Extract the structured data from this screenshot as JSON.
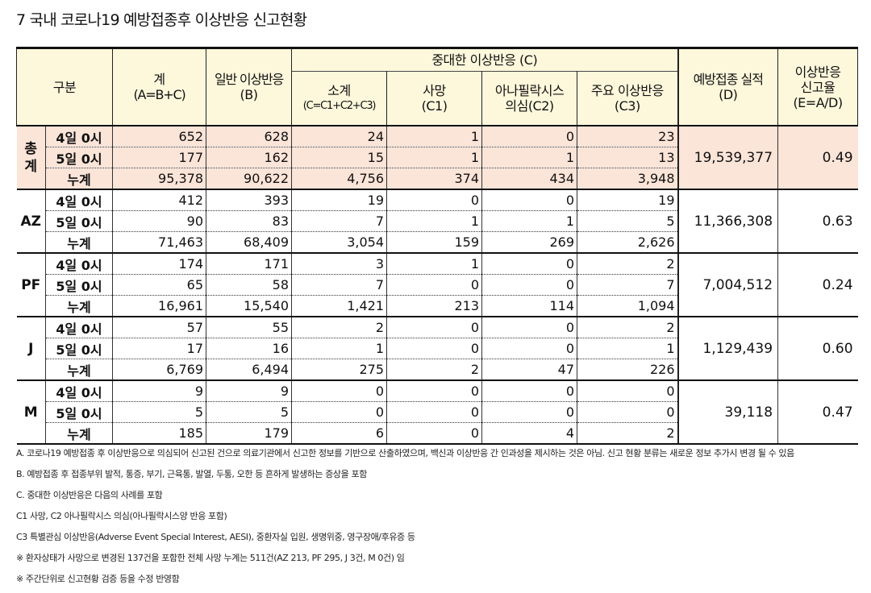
{
  "title": "7  국내 코로나19 예방접종후 이상반응 신고현황",
  "headers": {
    "category": "구분",
    "total": "계",
    "total_formula": "(A=B+C)",
    "general": "일반 이상반응",
    "general_code": "(B)",
    "serious": "중대한 이상반응 (C)",
    "subtotal": "소계",
    "subtotal_formula": "(C=C1+C2+C3)",
    "death": "사망",
    "death_code": "(C1)",
    "anaphylaxis": "아나필락시스",
    "anaphylaxis_sub": "의심(C2)",
    "major": "주요  이상반응",
    "major_code": "(C3)",
    "vaccination": "예방접종 실적",
    "vaccination_code": "(D)",
    "rate": "이상반응",
    "rate_sub": "신고율",
    "rate_code": "(E=A/D)"
  },
  "row_labels": [
    "4일 0시",
    "5일 0시",
    "누계"
  ],
  "groups": [
    {
      "name": "총계",
      "name_lines": [
        "총",
        "계"
      ],
      "vaccinations": "19,539,377",
      "rate": "0.49",
      "rows": [
        [
          "652",
          "628",
          "24",
          "1",
          "0",
          "23"
        ],
        [
          "177",
          "162",
          "15",
          "1",
          "1",
          "13"
        ],
        [
          "95,378",
          "90,622",
          "4,756",
          "374",
          "434",
          "3,948"
        ]
      ]
    },
    {
      "name": "AZ",
      "name_lines": [
        "AZ",
        ""
      ],
      "vaccinations": "11,366,308",
      "rate": "0.63",
      "rows": [
        [
          "412",
          "393",
          "19",
          "0",
          "0",
          "19"
        ],
        [
          "90",
          "83",
          "7",
          "1",
          "1",
          "5"
        ],
        [
          "71,463",
          "68,409",
          "3,054",
          "159",
          "269",
          "2,626"
        ]
      ]
    },
    {
      "name": "PF",
      "name_lines": [
        "PF",
        ""
      ],
      "vaccinations": "7,004,512",
      "rate": "0.24",
      "rows": [
        [
          "174",
          "171",
          "3",
          "1",
          "0",
          "2"
        ],
        [
          "65",
          "58",
          "7",
          "0",
          "0",
          "7"
        ],
        [
          "16,961",
          "15,540",
          "1,421",
          "213",
          "114",
          "1,094"
        ]
      ]
    },
    {
      "name": "J",
      "name_lines": [
        "J",
        ""
      ],
      "vaccinations": "1,129,439",
      "rate": "0.60",
      "rows": [
        [
          "57",
          "55",
          "2",
          "0",
          "0",
          "2"
        ],
        [
          "17",
          "16",
          "1",
          "0",
          "0",
          "1"
        ],
        [
          "6,769",
          "6,494",
          "275",
          "2",
          "47",
          "226"
        ]
      ]
    },
    {
      "name": "M",
      "name_lines": [
        "M",
        ""
      ],
      "vaccinations": "39,118",
      "rate": "0.47",
      "rows": [
        [
          "9",
          "9",
          "0",
          "0",
          "0",
          "0"
        ],
        [
          "5",
          "5",
          "0",
          "0",
          "0",
          "0"
        ],
        [
          "185",
          "179",
          "6",
          "0",
          "4",
          "2"
        ]
      ]
    }
  ],
  "notes": [
    "A. 코로나19 예방접종 후 이상반응으로 의심되어 신고된 건으로 의료기관에서 신고한 정보를 기반으로 산출하였으며, 백신과 이상반응 간 인과성을 제시하는 것은 아님. 신고 현황 분류는 새로운 정보 추가시 변경 될 수 있음",
    "B. 예방접종 후 접종부위 발적, 통증, 부기, 근육통, 발열, 두통, 오한 등 흔하게 발생하는 증상을 포함",
    "C. 중대한 이상반응은 다음의 사례를 포함",
    "C1 사망, C2 아나필락시스 의심(아나필락시스양 반응 포함)",
    "C3 특별관심 이상반응(Adverse Event Special Interest, AESI), 중환자실 입원, 생명위중, 영구장애/후유증 등",
    "※ 환자상태가 사망으로 변경된 137건을 포함한 전체 사망 누계는 511건(AZ 213, PF 295, J 3건, M 0건) 임",
    "※ 주간단위로 신고현황 검증 등을 수정 반영함"
  ],
  "colors": {
    "header_bg": "#fdf8dc",
    "total_bg": "#fbe4d8",
    "border": "#111111"
  }
}
